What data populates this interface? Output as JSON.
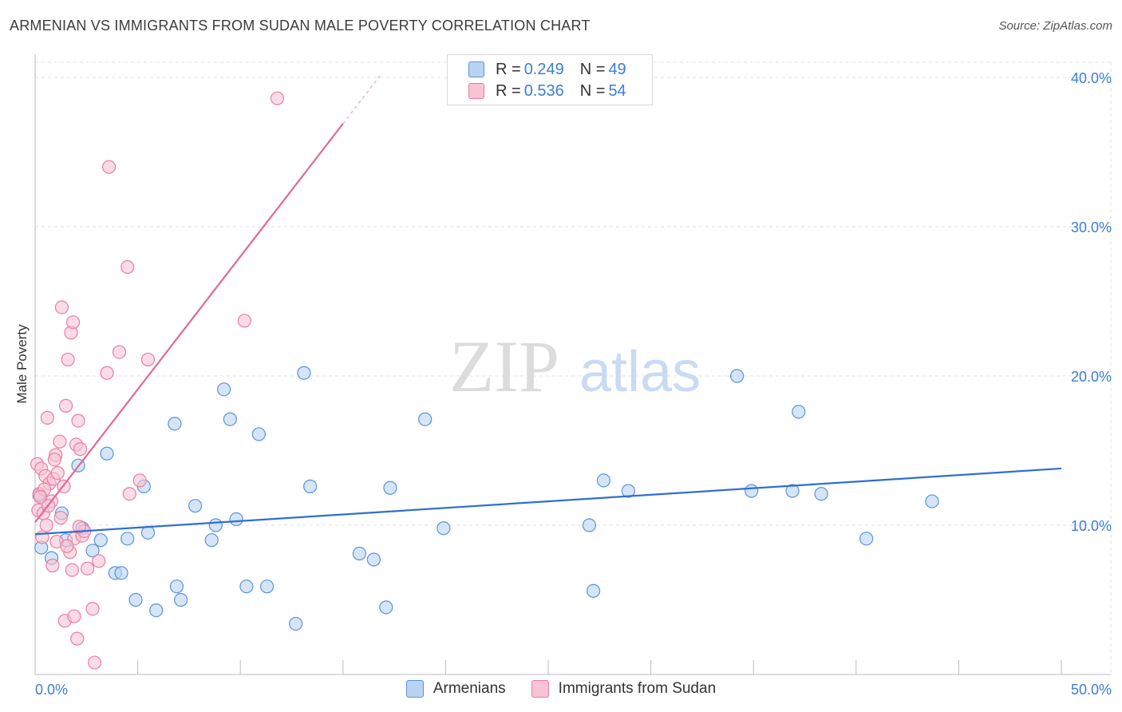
{
  "title": "ARMENIAN VS IMMIGRANTS FROM SUDAN MALE POVERTY CORRELATION CHART",
  "source": "Source: ZipAtlas.com",
  "watermark": {
    "zip": "ZIP",
    "atlas": "atlas"
  },
  "legend_top": {
    "armenians": {
      "r_label": "R = ",
      "r_value": "0.249",
      "n_label": "N = ",
      "n_value": "49"
    },
    "sudan": {
      "r_label": "R = ",
      "r_value": "0.536",
      "n_label": "N = ",
      "n_value": "54"
    }
  },
  "colors": {
    "armenians_fill": "#b9d3f2",
    "armenians_stroke": "#5b93d8",
    "armenians_line": "#2f6fd0",
    "sudan_fill": "#f8c3d3",
    "sudan_stroke": "#e77fa0",
    "sudan_line": "#e06a94",
    "tick_text": "#3b7dd8",
    "grid": "#e2e2e2"
  },
  "chart_data": {
    "type": "scatter",
    "title": "ARMENIAN VS IMMIGRANTS FROM SUDAN MALE POVERTY CORRELATION CHART",
    "xlabel": "",
    "ylabel": "Male Poverty",
    "xlim": [
      0,
      50
    ],
    "ylim": [
      0,
      40
    ],
    "x_tick_labels": [
      "0.0%",
      "50.0%"
    ],
    "y_ticks": [
      10,
      20,
      30,
      40
    ],
    "y_tick_labels": [
      "10.0%",
      "20.0%",
      "30.0%",
      "40.0%"
    ],
    "grid": true,
    "legend": [
      "Armenians",
      "Immigrants from Sudan"
    ],
    "series": [
      {
        "name": "Armenians",
        "points": [
          [
            0.3,
            8.5
          ],
          [
            0.8,
            7.8
          ],
          [
            1.3,
            10.8
          ],
          [
            1.5,
            9.0
          ],
          [
            2.3,
            9.8
          ],
          [
            2.1,
            14.0
          ],
          [
            2.8,
            8.3
          ],
          [
            3.2,
            9.0
          ],
          [
            3.5,
            14.8
          ],
          [
            3.9,
            6.8
          ],
          [
            4.2,
            6.8
          ],
          [
            4.5,
            9.1
          ],
          [
            4.9,
            5.0
          ],
          [
            5.3,
            12.6
          ],
          [
            5.5,
            9.5
          ],
          [
            5.9,
            4.3
          ],
          [
            6.8,
            16.8
          ],
          [
            6.9,
            5.9
          ],
          [
            7.1,
            5.0
          ],
          [
            7.8,
            11.3
          ],
          [
            8.6,
            9.0
          ],
          [
            8.8,
            10.0
          ],
          [
            9.2,
            19.1
          ],
          [
            9.5,
            17.1
          ],
          [
            9.8,
            10.4
          ],
          [
            10.3,
            5.9
          ],
          [
            10.9,
            16.1
          ],
          [
            11.3,
            5.9
          ],
          [
            12.7,
            3.4
          ],
          [
            13.1,
            20.2
          ],
          [
            13.4,
            12.6
          ],
          [
            15.8,
            8.1
          ],
          [
            16.5,
            7.7
          ],
          [
            17.1,
            4.5
          ],
          [
            17.3,
            12.5
          ],
          [
            19.0,
            17.1
          ],
          [
            19.9,
            9.8
          ],
          [
            27.0,
            10.0
          ],
          [
            27.2,
            5.6
          ],
          [
            27.7,
            13.0
          ],
          [
            28.9,
            12.3
          ],
          [
            34.2,
            20.0
          ],
          [
            34.9,
            12.3
          ],
          [
            36.9,
            12.3
          ],
          [
            37.2,
            17.6
          ],
          [
            38.3,
            12.1
          ],
          [
            40.5,
            9.1
          ],
          [
            43.7,
            11.6
          ],
          [
            0.2,
            12.0
          ]
        ]
      },
      {
        "name": "Immigrants from Sudan",
        "points": [
          [
            0.1,
            14.1
          ],
          [
            0.15,
            11.0
          ],
          [
            0.2,
            12.1
          ],
          [
            0.3,
            13.8
          ],
          [
            0.4,
            10.8
          ],
          [
            0.5,
            13.3
          ],
          [
            0.6,
            17.2
          ],
          [
            0.7,
            12.8
          ],
          [
            0.8,
            11.6
          ],
          [
            0.9,
            13.1
          ],
          [
            1.0,
            14.7
          ],
          [
            1.1,
            13.5
          ],
          [
            1.2,
            15.6
          ],
          [
            1.3,
            24.6
          ],
          [
            1.4,
            12.6
          ],
          [
            1.5,
            18.0
          ],
          [
            1.6,
            21.1
          ],
          [
            1.7,
            8.2
          ],
          [
            1.8,
            7.0
          ],
          [
            1.9,
            9.1
          ],
          [
            2.0,
            15.4
          ],
          [
            2.1,
            17.0
          ],
          [
            2.2,
            15.1
          ],
          [
            2.3,
            9.3
          ],
          [
            1.75,
            22.9
          ],
          [
            1.85,
            23.6
          ],
          [
            0.55,
            10.0
          ],
          [
            0.85,
            7.3
          ],
          [
            1.05,
            8.9
          ],
          [
            2.4,
            9.6
          ],
          [
            2.55,
            7.1
          ],
          [
            1.45,
            3.6
          ],
          [
            1.9,
            3.9
          ],
          [
            2.05,
            2.4
          ],
          [
            2.8,
            4.4
          ],
          [
            3.1,
            7.6
          ],
          [
            3.5,
            20.2
          ],
          [
            3.6,
            34.0
          ],
          [
            4.1,
            21.6
          ],
          [
            4.5,
            27.3
          ],
          [
            4.6,
            12.1
          ],
          [
            5.1,
            13.0
          ],
          [
            5.5,
            21.1
          ],
          [
            10.2,
            23.7
          ],
          [
            11.8,
            38.6
          ],
          [
            2.9,
            0.8
          ],
          [
            0.35,
            9.2
          ],
          [
            0.65,
            11.3
          ],
          [
            1.25,
            10.5
          ],
          [
            0.45,
            12.4
          ],
          [
            2.15,
            9.9
          ],
          [
            1.55,
            8.6
          ],
          [
            0.95,
            14.4
          ],
          [
            0.25,
            11.9
          ]
        ]
      }
    ],
    "trendlines": [
      {
        "name": "Armenians",
        "x": [
          0,
          50
        ],
        "y": [
          9.4,
          13.8
        ]
      },
      {
        "name": "Immigrants from Sudan",
        "x": [
          0,
          15
        ],
        "y": [
          10.2,
          36.9
        ],
        "dashed_extension": {
          "x": [
            15,
            16.8
          ],
          "y": [
            36.9,
            40.1
          ]
        }
      }
    ]
  }
}
